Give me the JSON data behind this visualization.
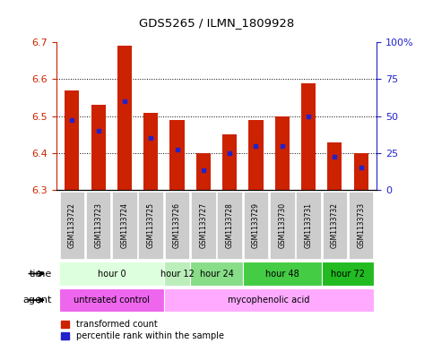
{
  "title": "GDS5265 / ILMN_1809928",
  "samples": [
    "GSM1133722",
    "GSM1133723",
    "GSM1133724",
    "GSM1133725",
    "GSM1133726",
    "GSM1133727",
    "GSM1133728",
    "GSM1133729",
    "GSM1133730",
    "GSM1133731",
    "GSM1133732",
    "GSM1133733"
  ],
  "bar_values": [
    6.57,
    6.53,
    6.69,
    6.51,
    6.49,
    6.4,
    6.45,
    6.49,
    6.5,
    6.59,
    6.43,
    6.4
  ],
  "percentile_values": [
    6.49,
    6.46,
    6.54,
    6.44,
    6.41,
    6.355,
    6.4,
    6.42,
    6.42,
    6.5,
    6.39,
    6.36
  ],
  "bar_bottom": 6.3,
  "ylim_min": 6.3,
  "ylim_max": 6.7,
  "y_ticks_left": [
    6.3,
    6.4,
    6.5,
    6.6,
    6.7
  ],
  "y_ticks_right": [
    0,
    25,
    50,
    75,
    100
  ],
  "bar_color": "#CC2200",
  "percentile_color": "#2222CC",
  "time_groups": [
    {
      "label": "hour 0",
      "start": 0,
      "end": 4,
      "color": "#DDFFDD"
    },
    {
      "label": "hour 12",
      "start": 4,
      "end": 5,
      "color": "#BBEEBB"
    },
    {
      "label": "hour 24",
      "start": 5,
      "end": 7,
      "color": "#88DD88"
    },
    {
      "label": "hour 48",
      "start": 7,
      "end": 10,
      "color": "#44CC44"
    },
    {
      "label": "hour 72",
      "start": 10,
      "end": 12,
      "color": "#22BB22"
    }
  ],
  "agent_groups": [
    {
      "label": "untreated control",
      "start": 0,
      "end": 4,
      "color": "#EE66EE"
    },
    {
      "label": "mycophenolic acid",
      "start": 4,
      "end": 12,
      "color": "#FFAAFF"
    }
  ],
  "sample_bg_color": "#CCCCCC",
  "left_axis_color": "#CC2200",
  "right_axis_color": "#2222CC",
  "bar_width": 0.55,
  "figsize": [
    4.83,
    3.93
  ],
  "dpi": 100
}
